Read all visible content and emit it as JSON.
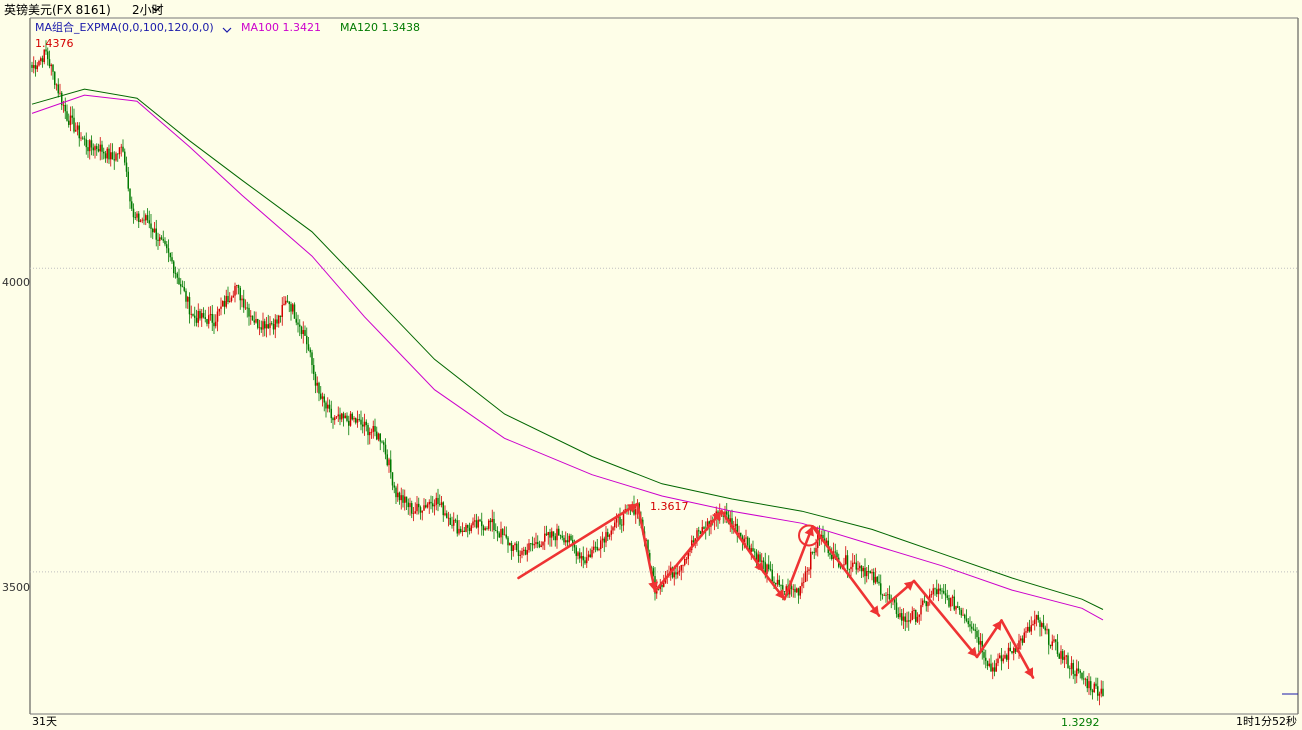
{
  "header": {
    "symbol": "英镑美元(FX 8161)",
    "period": "2小时",
    "indicator": "MA组合_EXPMA(0,0,100,120,0,0)",
    "ma100_label": "MA100 1.3421",
    "ma120_label": "MA120 1.3438"
  },
  "colors": {
    "background": "#fefee8",
    "up_candle": "#d40000",
    "down_candle": "#007a00",
    "ma100": "#cc00cc",
    "ma120": "#006600",
    "annotation": "#ee3333",
    "grid": "#bfbfbf"
  },
  "footer": {
    "range_label": "31天",
    "countdown": "1时1分52秒"
  },
  "chart_data": {
    "type": "candlestick",
    "yticks": [
      "4000",
      "3500"
    ],
    "ylim": [
      1.3266,
      1.4412
    ],
    "max_label": "1.4376",
    "min_label": "1.3292",
    "peak_label": "1.3617",
    "close_price": 1.3304,
    "anchors": [
      {
        "i": 0,
        "p": 1.433
      },
      {
        "i": 8,
        "p": 1.4355
      },
      {
        "i": 20,
        "p": 1.425
      },
      {
        "i": 32,
        "p": 1.42
      },
      {
        "i": 38,
        "p": 1.42
      },
      {
        "i": 46,
        "p": 1.418
      },
      {
        "i": 52,
        "p": 1.42
      },
      {
        "i": 58,
        "p": 1.408
      },
      {
        "i": 66,
        "p": 1.408
      },
      {
        "i": 80,
        "p": 1.401
      },
      {
        "i": 92,
        "p": 1.392
      },
      {
        "i": 104,
        "p": 1.3915
      },
      {
        "i": 116,
        "p": 1.397
      },
      {
        "i": 128,
        "p": 1.391
      },
      {
        "i": 140,
        "p": 1.391
      },
      {
        "i": 146,
        "p": 1.395
      },
      {
        "i": 156,
        "p": 1.389
      },
      {
        "i": 164,
        "p": 1.379
      },
      {
        "i": 172,
        "p": 1.375
      },
      {
        "i": 184,
        "p": 1.375
      },
      {
        "i": 200,
        "p": 1.372
      },
      {
        "i": 208,
        "p": 1.363
      },
      {
        "i": 218,
        "p": 1.36
      },
      {
        "i": 230,
        "p": 1.362
      },
      {
        "i": 244,
        "p": 1.357
      },
      {
        "i": 262,
        "p": 1.358
      },
      {
        "i": 278,
        "p": 1.353
      },
      {
        "i": 290,
        "p": 1.355
      },
      {
        "i": 302,
        "p": 1.3565
      },
      {
        "i": 316,
        "p": 1.352
      },
      {
        "i": 330,
        "p": 1.357
      },
      {
        "i": 346,
        "p": 1.361
      },
      {
        "i": 356,
        "p": 1.3475
      },
      {
        "i": 370,
        "p": 1.351
      },
      {
        "i": 380,
        "p": 1.356
      },
      {
        "i": 394,
        "p": 1.36
      },
      {
        "i": 406,
        "p": 1.356
      },
      {
        "i": 418,
        "p": 1.351
      },
      {
        "i": 428,
        "p": 1.347
      },
      {
        "i": 438,
        "p": 1.347
      },
      {
        "i": 450,
        "p": 1.356
      },
      {
        "i": 460,
        "p": 1.352
      },
      {
        "i": 474,
        "p": 1.351
      },
      {
        "i": 486,
        "p": 1.347
      },
      {
        "i": 498,
        "p": 1.342
      },
      {
        "i": 506,
        "p": 1.343
      },
      {
        "i": 516,
        "p": 1.347
      },
      {
        "i": 530,
        "p": 1.344
      },
      {
        "i": 538,
        "p": 1.341
      },
      {
        "i": 548,
        "p": 1.334
      },
      {
        "i": 556,
        "p": 1.336
      },
      {
        "i": 566,
        "p": 1.339
      },
      {
        "i": 574,
        "p": 1.342
      },
      {
        "i": 586,
        "p": 1.337
      },
      {
        "i": 598,
        "p": 1.333
      },
      {
        "i": 606,
        "p": 1.331
      },
      {
        "i": 612,
        "p": 1.3304
      }
    ],
    "ma100": [
      {
        "i": 0,
        "p": 1.4255
      },
      {
        "i": 30,
        "p": 1.4285
      },
      {
        "i": 60,
        "p": 1.4275
      },
      {
        "i": 90,
        "p": 1.42
      },
      {
        "i": 120,
        "p": 1.412
      },
      {
        "i": 160,
        "p": 1.402
      },
      {
        "i": 190,
        "p": 1.392
      },
      {
        "i": 230,
        "p": 1.38
      },
      {
        "i": 270,
        "p": 1.372
      },
      {
        "i": 320,
        "p": 1.366
      },
      {
        "i": 360,
        "p": 1.3625
      },
      {
        "i": 400,
        "p": 1.36
      },
      {
        "i": 440,
        "p": 1.358
      },
      {
        "i": 480,
        "p": 1.3545
      },
      {
        "i": 520,
        "p": 1.351
      },
      {
        "i": 560,
        "p": 1.347
      },
      {
        "i": 600,
        "p": 1.344
      },
      {
        "i": 612,
        "p": 1.3421
      }
    ],
    "ma120": [
      {
        "i": 0,
        "p": 1.427
      },
      {
        "i": 30,
        "p": 1.4295
      },
      {
        "i": 60,
        "p": 1.428
      },
      {
        "i": 90,
        "p": 1.421
      },
      {
        "i": 120,
        "p": 1.4145
      },
      {
        "i": 160,
        "p": 1.406
      },
      {
        "i": 190,
        "p": 1.397
      },
      {
        "i": 230,
        "p": 1.385
      },
      {
        "i": 270,
        "p": 1.376
      },
      {
        "i": 320,
        "p": 1.369
      },
      {
        "i": 360,
        "p": 1.3645
      },
      {
        "i": 400,
        "p": 1.362
      },
      {
        "i": 440,
        "p": 1.36
      },
      {
        "i": 480,
        "p": 1.357
      },
      {
        "i": 520,
        "p": 1.353
      },
      {
        "i": 560,
        "p": 1.349
      },
      {
        "i": 600,
        "p": 1.3455
      },
      {
        "i": 612,
        "p": 1.3438
      }
    ],
    "arrows": [
      {
        "from": {
          "i": 278,
          "p": 1.349
        },
        "to": {
          "i": 346,
          "p": 1.3612
        }
      },
      {
        "from": {
          "i": 346,
          "p": 1.3612
        },
        "to": {
          "i": 356,
          "p": 1.3468
        }
      },
      {
        "from": {
          "i": 356,
          "p": 1.3468
        },
        "to": {
          "i": 394,
          "p": 1.36
        }
      },
      {
        "from": {
          "i": 394,
          "p": 1.36
        },
        "to": {
          "i": 418,
          "p": 1.35
        }
      },
      {
        "from": {
          "i": 418,
          "p": 1.35
        },
        "to": {
          "i": 430,
          "p": 1.3455
        }
      },
      {
        "from": {
          "i": 430,
          "p": 1.3455
        },
        "to": {
          "i": 446,
          "p": 1.3575
        }
      },
      {
        "from": {
          "i": 446,
          "p": 1.3575
        },
        "to": {
          "i": 484,
          "p": 1.3428
        }
      },
      {
        "from": {
          "i": 486,
          "p": 1.344
        },
        "to": {
          "i": 504,
          "p": 1.3485
        }
      },
      {
        "from": {
          "i": 504,
          "p": 1.3485
        },
        "to": {
          "i": 540,
          "p": 1.336
        }
      },
      {
        "from": {
          "i": 540,
          "p": 1.336
        },
        "to": {
          "i": 554,
          "p": 1.342
        }
      },
      {
        "from": {
          "i": 554,
          "p": 1.342
        },
        "to": {
          "i": 572,
          "p": 1.3326
        }
      }
    ],
    "circle_marker": {
      "i": 444,
      "p": 1.356
    }
  }
}
